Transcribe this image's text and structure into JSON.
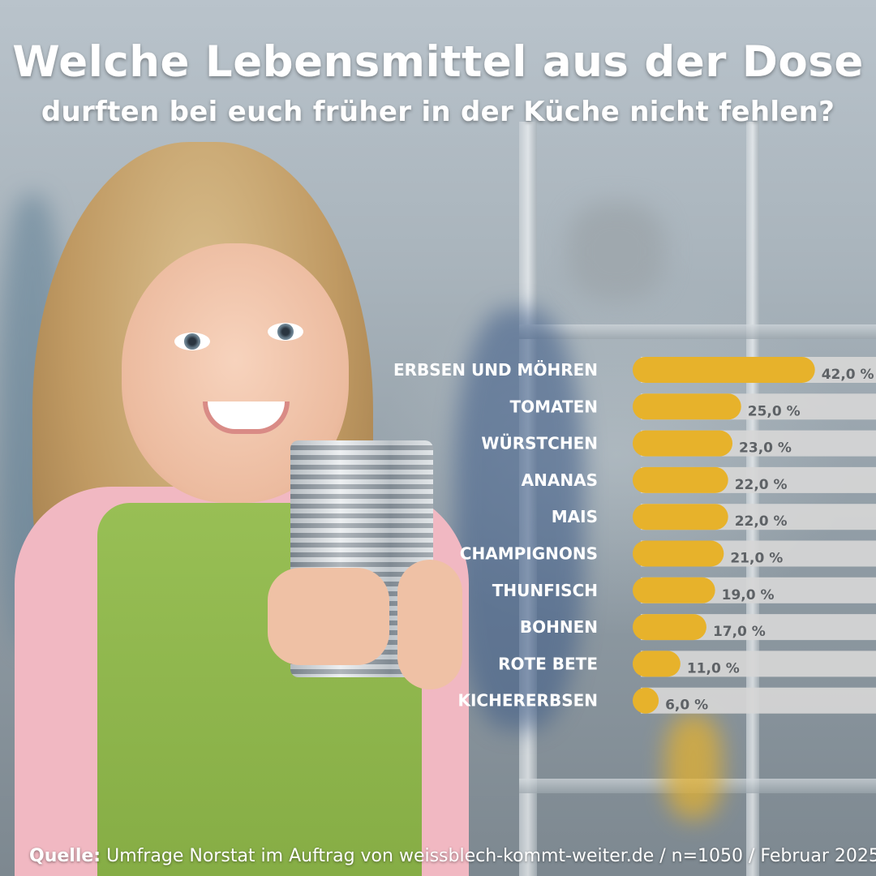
{
  "title": "Welche Lebensmittel aus der Dose",
  "subtitle": "durften bei euch früher in der Küche nicht fehlen?",
  "colors": {
    "bar_fill": "#e7b22b",
    "track": "#d6d6d6",
    "value_text": "#5e6266",
    "label_text": "#ffffff"
  },
  "chart_data": {
    "type": "bar",
    "orientation": "horizontal",
    "categories": [
      "ERBSEN UND MÖHREN",
      "TOMATEN",
      "WÜRSTCHEN",
      "ANANAS",
      "MAIS",
      "CHAMPIGNONS",
      "THUNFISCH",
      "BOHNEN",
      "ROTE BETE",
      "KICHERERBSEN"
    ],
    "values": [
      42.0,
      25.0,
      23.0,
      22.0,
      22.0,
      21.0,
      19.0,
      17.0,
      11.0,
      6.0
    ],
    "value_labels": [
      "42,0 %",
      "25,0 %",
      "23,0 %",
      "22,0 %",
      "22,0 %",
      "21,0 %",
      "19,0 %",
      "17,0 %",
      "11,0 %",
      "6,0 %"
    ],
    "unit": "%",
    "xlim": [
      0,
      100
    ],
    "grid": false,
    "legend": "none"
  },
  "source": {
    "label": "Quelle:",
    "text": "Umfrage Norstat im Auftrag von weissblech-kommt-weiter.de / n=1050 / Februar 2025"
  },
  "photo": {
    "description_icon": "girl-holding-tin-can-photo"
  }
}
